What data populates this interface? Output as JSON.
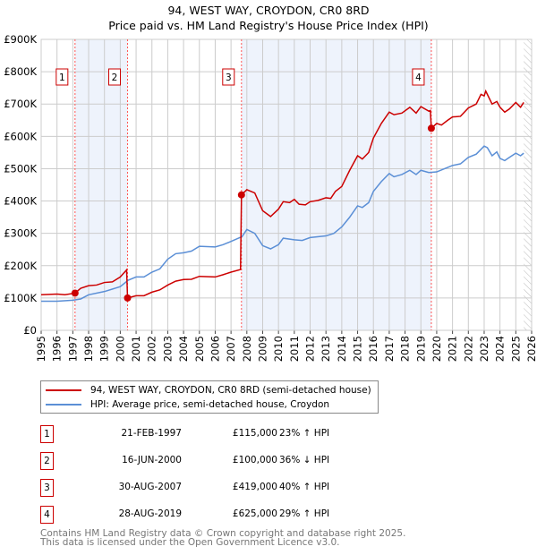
{
  "title": "94, WEST WAY, CROYDON, CR0 8RD",
  "subtitle": "Price paid vs. HM Land Registry's House Price Index (HPI)",
  "colors": {
    "property": "#cc0000",
    "hpi": "#5b8fd6",
    "shade": "#eef3fc"
  },
  "chart_data": {
    "type": "line",
    "title": "94, WEST WAY, CROYDON, CR0 8RD",
    "subtitle": "Price paid vs. HM Land Registry's House Price Index (HPI)",
    "xlim": [
      1995,
      2026
    ],
    "ylim": [
      0,
      900000
    ],
    "grid": true,
    "x_ticks": [
      "1995",
      "1996",
      "1997",
      "1998",
      "1999",
      "2000",
      "2001",
      "2002",
      "2003",
      "2004",
      "2005",
      "2006",
      "2007",
      "2008",
      "2009",
      "2010",
      "2011",
      "2012",
      "2013",
      "2014",
      "2015",
      "2016",
      "2017",
      "2018",
      "2019",
      "2020",
      "2021",
      "2022",
      "2023",
      "2024",
      "2025",
      "2026"
    ],
    "y_ticks": [
      {
        "v": 0,
        "label": "£0"
      },
      {
        "v": 100000,
        "label": "£100K"
      },
      {
        "v": 200000,
        "label": "£200K"
      },
      {
        "v": 300000,
        "label": "£300K"
      },
      {
        "v": 400000,
        "label": "£400K"
      },
      {
        "v": 500000,
        "label": "£500K"
      },
      {
        "v": 600000,
        "label": "£600K"
      },
      {
        "v": 700000,
        "label": "£700K"
      },
      {
        "v": 800000,
        "label": "£800K"
      },
      {
        "v": 900000,
        "label": "£900K"
      }
    ],
    "series": [
      {
        "name": "94, WEST WAY, CROYDON, CR0 8RD (semi-detached house)",
        "color": "#cc0000",
        "points": [
          [
            1995,
            110
          ],
          [
            1996,
            112
          ],
          [
            1996.5,
            110
          ],
          [
            1997.14,
            115
          ],
          [
            1997.5,
            130
          ],
          [
            1998,
            138
          ],
          [
            1998.5,
            140
          ],
          [
            1999,
            148
          ],
          [
            1999.5,
            150
          ],
          [
            2000,
            165
          ],
          [
            2000.4,
            187
          ],
          [
            2000.46,
            100
          ],
          [
            2001,
            107
          ],
          [
            2001.5,
            107
          ],
          [
            2002,
            118
          ],
          [
            2002.5,
            125
          ],
          [
            2003,
            140
          ],
          [
            2003.5,
            152
          ],
          [
            2004,
            157
          ],
          [
            2004.5,
            158
          ],
          [
            2005,
            167
          ],
          [
            2006,
            165
          ],
          [
            2006.5,
            172
          ],
          [
            2007,
            180
          ],
          [
            2007.6,
            188
          ],
          [
            2007.66,
            419
          ],
          [
            2008,
            435
          ],
          [
            2008.5,
            425
          ],
          [
            2009,
            370
          ],
          [
            2009.5,
            352
          ],
          [
            2010,
            375
          ],
          [
            2010.3,
            398
          ],
          [
            2010.7,
            395
          ],
          [
            2011,
            405
          ],
          [
            2011.3,
            390
          ],
          [
            2011.7,
            388
          ],
          [
            2012,
            398
          ],
          [
            2012.5,
            402
          ],
          [
            2013,
            410
          ],
          [
            2013.3,
            408
          ],
          [
            2013.6,
            430
          ],
          [
            2014,
            445
          ],
          [
            2014.5,
            495
          ],
          [
            2015,
            540
          ],
          [
            2015.3,
            530
          ],
          [
            2015.7,
            550
          ],
          [
            2016,
            595
          ],
          [
            2016.5,
            640
          ],
          [
            2017,
            675
          ],
          [
            2017.3,
            667
          ],
          [
            2017.8,
            672
          ],
          [
            2018.3,
            690
          ],
          [
            2018.7,
            672
          ],
          [
            2019,
            692
          ],
          [
            2019.5,
            678
          ],
          [
            2019.6,
            680
          ],
          [
            2019.66,
            625
          ],
          [
            2020,
            640
          ],
          [
            2020.3,
            635
          ],
          [
            2020.7,
            650
          ],
          [
            2021,
            660
          ],
          [
            2021.5,
            662
          ],
          [
            2022,
            688
          ],
          [
            2022.5,
            700
          ],
          [
            2022.8,
            730
          ],
          [
            2023,
            725
          ],
          [
            2023.1,
            740
          ],
          [
            2023.5,
            700
          ],
          [
            2023.8,
            708
          ],
          [
            2024,
            690
          ],
          [
            2024.3,
            675
          ],
          [
            2024.6,
            685
          ],
          [
            2025,
            705
          ],
          [
            2025.3,
            690
          ],
          [
            2025.5,
            705
          ]
        ]
      },
      {
        "name": "HPI: Average price, semi-detached house, Croydon",
        "color": "#5b8fd6",
        "points": [
          [
            1995,
            90
          ],
          [
            1996,
            90
          ],
          [
            1997,
            93
          ],
          [
            1997.5,
            97
          ],
          [
            1998,
            110
          ],
          [
            1999,
            120
          ],
          [
            2000,
            135
          ],
          [
            2000.5,
            155
          ],
          [
            2001,
            165
          ],
          [
            2001.5,
            165
          ],
          [
            2002,
            180
          ],
          [
            2002.5,
            190
          ],
          [
            2003,
            220
          ],
          [
            2003.5,
            237
          ],
          [
            2004,
            240
          ],
          [
            2004.5,
            245
          ],
          [
            2005,
            260
          ],
          [
            2006,
            258
          ],
          [
            2006.5,
            265
          ],
          [
            2007,
            275
          ],
          [
            2007.7,
            290
          ],
          [
            2008,
            312
          ],
          [
            2008.5,
            300
          ],
          [
            2009,
            262
          ],
          [
            2009.5,
            252
          ],
          [
            2010,
            265
          ],
          [
            2010.3,
            285
          ],
          [
            2011,
            280
          ],
          [
            2011.5,
            278
          ],
          [
            2012,
            287
          ],
          [
            2013,
            292
          ],
          [
            2013.5,
            300
          ],
          [
            2014,
            320
          ],
          [
            2014.5,
            350
          ],
          [
            2015,
            385
          ],
          [
            2015.3,
            380
          ],
          [
            2015.7,
            395
          ],
          [
            2016,
            430
          ],
          [
            2016.5,
            460
          ],
          [
            2017,
            485
          ],
          [
            2017.3,
            475
          ],
          [
            2017.8,
            482
          ],
          [
            2018.3,
            495
          ],
          [
            2018.7,
            482
          ],
          [
            2019,
            495
          ],
          [
            2019.5,
            488
          ],
          [
            2020,
            490
          ],
          [
            2020.5,
            500
          ],
          [
            2021,
            510
          ],
          [
            2021.5,
            515
          ],
          [
            2022,
            535
          ],
          [
            2022.5,
            545
          ],
          [
            2023,
            570
          ],
          [
            2023.2,
            565
          ],
          [
            2023.5,
            540
          ],
          [
            2023.8,
            552
          ],
          [
            2024,
            532
          ],
          [
            2024.3,
            525
          ],
          [
            2024.6,
            535
          ],
          [
            2025,
            548
          ],
          [
            2025.3,
            540
          ],
          [
            2025.5,
            548
          ]
        ]
      }
    ],
    "sales": [
      {
        "n": "1",
        "x": 1997.14,
        "v": 115
      },
      {
        "n": "2",
        "x": 2000.46,
        "v": 100
      },
      {
        "n": "3",
        "x": 2007.66,
        "v": 419
      },
      {
        "n": "4",
        "x": 2019.66,
        "v": 625
      }
    ],
    "shaded_ranges": [
      [
        1997.14,
        2000.46
      ],
      [
        2007.66,
        2019.66
      ]
    ],
    "hatched_from": 2025.5
  },
  "legend": {
    "property": "94, WEST WAY, CROYDON, CR0 8RD (semi-detached house)",
    "hpi": "HPI: Average price, semi-detached house, Croydon"
  },
  "transactions": [
    {
      "n": "1",
      "date": "21-FEB-1997",
      "price": "£115,000",
      "hpi": "23% ↑ HPI"
    },
    {
      "n": "2",
      "date": "16-JUN-2000",
      "price": "£100,000",
      "hpi": "36% ↓ HPI"
    },
    {
      "n": "3",
      "date": "30-AUG-2007",
      "price": "£419,000",
      "hpi": "40% ↑ HPI"
    },
    {
      "n": "4",
      "date": "28-AUG-2019",
      "price": "£625,000",
      "hpi": "29% ↑ HPI"
    }
  ],
  "footer": {
    "line1": "Contains HM Land Registry data © Crown copyright and database right 2025.",
    "line2": "This data is licensed under the Open Government Licence v3.0."
  }
}
